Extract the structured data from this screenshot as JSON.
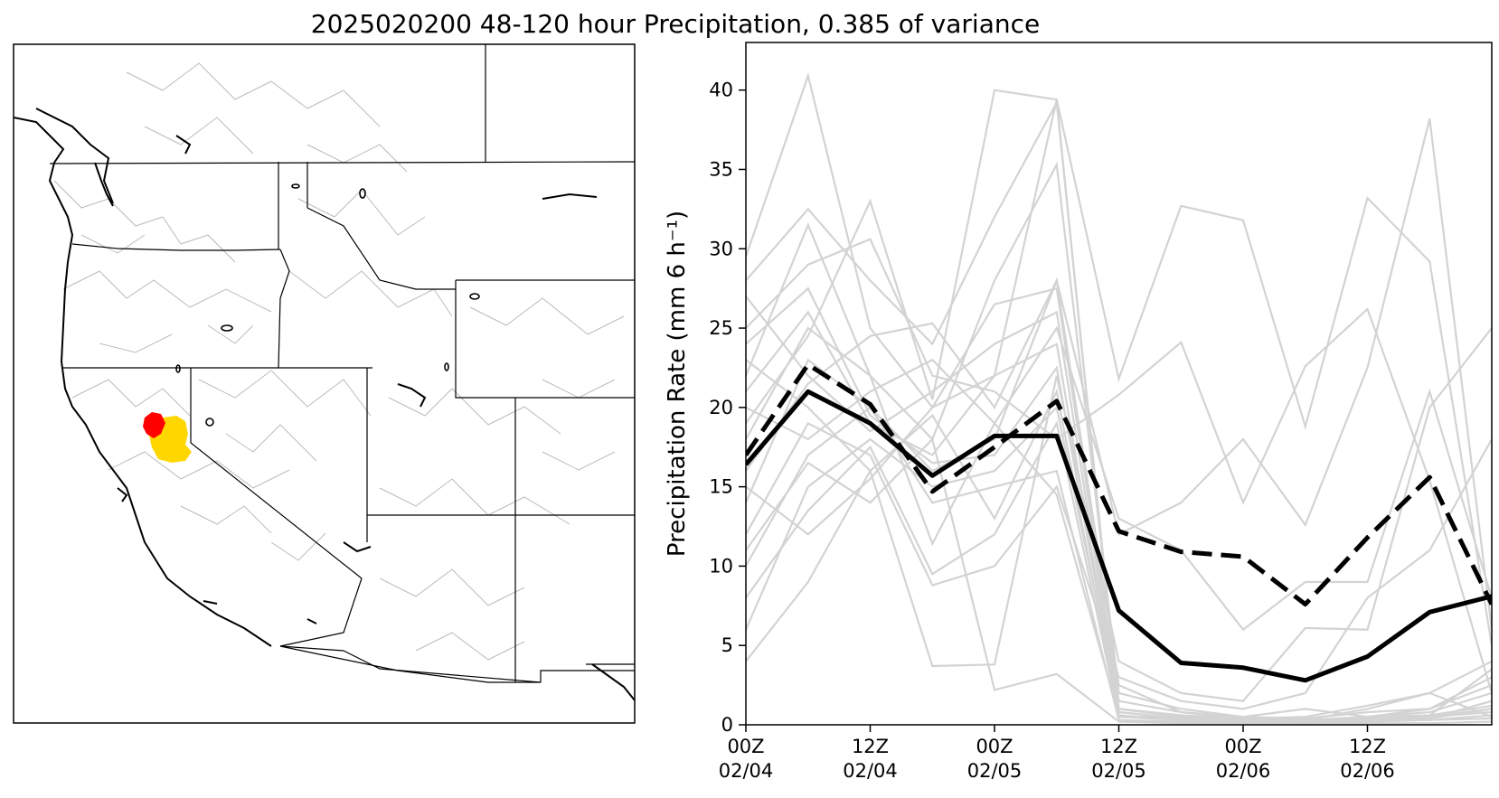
{
  "title": "2025020200 48-120 hour Precipitation, 0.385 of variance",
  "colors": {
    "member": "#d3d3d3",
    "mean": "#000000",
    "highlight_red": "#ff0000",
    "highlight_yellow": "#ffd700",
    "border": "#000000",
    "basin": "#bbbbbb"
  },
  "map": {
    "description_icon": "map-panel",
    "highlight_regions": [
      "red",
      "yellow"
    ]
  },
  "chart_data": {
    "type": "line",
    "ylabel": "Precipitation Rate (mm 6 h⁻¹)",
    "ylim": [
      0,
      43
    ],
    "yticks": [
      0,
      5,
      10,
      15,
      20,
      25,
      30,
      35,
      40
    ],
    "xlim": [
      0,
      54
    ],
    "xticks": [
      0,
      9,
      18,
      27,
      36,
      45
    ],
    "xticklabels": [
      [
        "00Z",
        "02/04"
      ],
      [
        "12Z",
        "02/04"
      ],
      [
        "00Z",
        "02/05"
      ],
      [
        "12Z",
        "02/05"
      ],
      [
        "00Z",
        "02/06"
      ],
      [
        "12Z",
        "02/06"
      ]
    ],
    "x": [
      0,
      4.5,
      9,
      13.5,
      18,
      22.5,
      27,
      31.5,
      36,
      40.5,
      45,
      49.5,
      54
    ],
    "series": [
      {
        "style": "solid",
        "values": [
          16.4,
          21.0,
          19.0,
          15.7,
          18.2,
          18.2,
          7.2,
          3.9,
          3.6,
          2.8,
          4.3,
          7.1,
          8.1
        ]
      },
      {
        "style": "dashed",
        "values": [
          17.0,
          22.7,
          20.2,
          14.7,
          17.5,
          20.4,
          12.2,
          10.9,
          10.6,
          7.6,
          11.8,
          15.6,
          7.6
        ]
      }
    ],
    "members": [
      [
        29.5,
        40.9,
        25.0,
        20.0,
        22.0,
        39.4,
        0.5,
        0.3,
        0.2,
        0.1,
        0.3,
        0.5,
        1.0
      ],
      [
        28.0,
        32.5,
        28.0,
        24.0,
        32.0,
        39.2,
        1.0,
        0.5,
        0.3,
        0.2,
        0.5,
        0.8,
        2.0
      ],
      [
        22.0,
        31.5,
        22.0,
        18.0,
        28.0,
        35.3,
        2.0,
        1.0,
        0.5,
        0.3,
        1.0,
        2.0,
        4.0
      ],
      [
        19.0,
        24.5,
        33.0,
        20.5,
        40.0,
        39.4,
        21.8,
        32.7,
        31.8,
        18.8,
        33.2,
        29.2,
        5.0
      ],
      [
        10.0,
        17.0,
        20.0,
        16.0,
        18.0,
        28.0,
        12.0,
        14.0,
        18.0,
        12.6,
        22.5,
        38.2,
        6.0
      ],
      [
        25.0,
        29.0,
        30.6,
        22.0,
        21.0,
        18.0,
        20.8,
        24.1,
        14.0,
        22.6,
        26.2,
        15.4,
        2.0
      ],
      [
        4.0,
        9.0,
        16.0,
        3.7,
        3.8,
        22.0,
        4.0,
        2.0,
        1.5,
        6.1,
        6.0,
        20.0,
        25.0
      ],
      [
        18.0,
        25.0,
        22.0,
        11.4,
        19.0,
        25.0,
        13.0,
        11.0,
        6.0,
        9.0,
        9.0,
        21.0,
        8.0
      ],
      [
        12.0,
        19.0,
        17.0,
        8.8,
        10.0,
        15.0,
        3.0,
        1.5,
        1.0,
        2.0,
        8.0,
        11.0,
        18.0
      ],
      [
        6.0,
        15.0,
        18.0,
        15.0,
        16.0,
        20.0,
        1.0,
        0.5,
        0.5,
        1.0,
        0.5,
        1.0,
        3.0
      ],
      [
        21.0,
        26.0,
        19.0,
        17.0,
        22.0,
        24.0,
        0.8,
        0.4,
        0.3,
        0.2,
        0.3,
        0.4,
        1.5
      ],
      [
        16.0,
        21.5,
        24.5,
        25.3,
        20.0,
        28.0,
        2.5,
        0.8,
        0.4,
        0.5,
        1.2,
        2.0,
        0.5
      ],
      [
        8.0,
        13.5,
        17.5,
        9.5,
        12.0,
        19.0,
        0.5,
        0.5,
        0.3,
        0.3,
        0.3,
        0.5,
        0.8
      ],
      [
        14.0,
        23.0,
        20.0,
        14.0,
        15.0,
        16.0,
        0.3,
        0.2,
        0.2,
        0.1,
        0.2,
        0.3,
        0.6
      ],
      [
        27.0,
        22.0,
        18.5,
        21.0,
        24.0,
        26.0,
        1.0,
        0.6,
        0.4,
        0.3,
        0.5,
        0.6,
        3.5
      ],
      [
        23.0,
        20.0,
        16.0,
        19.5,
        13.0,
        21.0,
        0.5,
        0.4,
        0.2,
        0.1,
        0.2,
        0.3,
        0.4
      ],
      [
        11.0,
        16.5,
        14.0,
        18.0,
        2.2,
        3.2,
        0.2,
        0.1,
        0.1,
        0.1,
        0.1,
        0.1,
        0.2
      ],
      [
        20.0,
        18.0,
        21.0,
        23.0,
        19.0,
        14.5,
        0.6,
        0.3,
        0.2,
        0.2,
        0.2,
        0.4,
        1.0
      ],
      [
        15.0,
        12.0,
        15.5,
        20.0,
        26.5,
        27.5,
        1.5,
        0.8,
        0.5,
        0.4,
        0.8,
        1.0,
        2.5
      ],
      [
        24.0,
        27.5,
        19.5,
        16.5,
        17.0,
        22.5,
        0.8,
        0.4,
        0.3,
        0.2,
        0.4,
        0.6,
        1.2
      ]
    ]
  }
}
